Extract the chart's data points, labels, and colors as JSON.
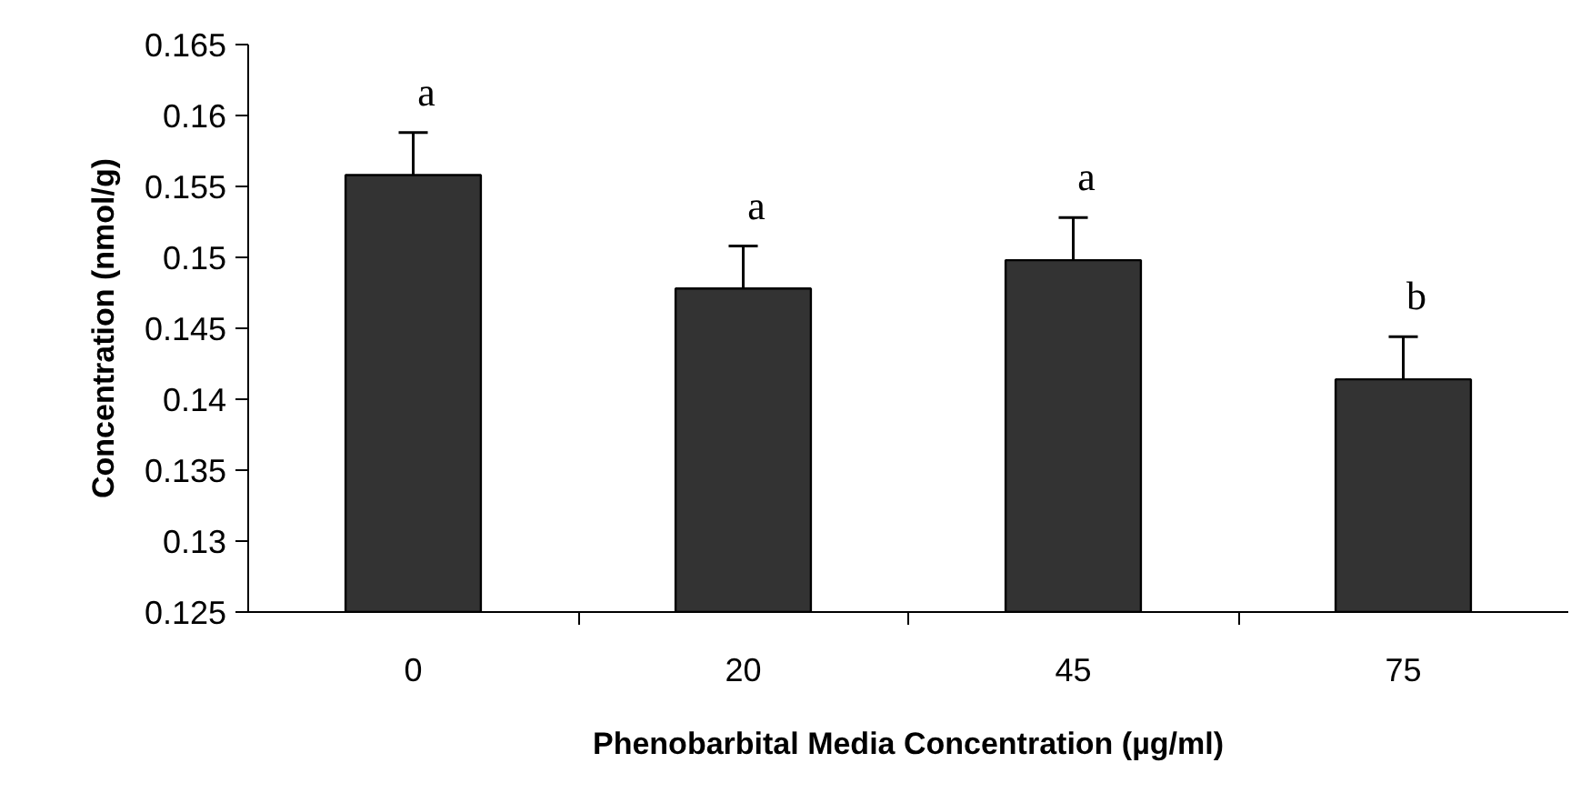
{
  "chart_data": {
    "type": "bar",
    "xlabel": "Phenobarbital Media Concentration (µg/ml)",
    "ylabel": "Concentration (nmol/g)",
    "categories": [
      "0",
      "20",
      "45",
      "75"
    ],
    "values": [
      0.1558,
      0.1478,
      0.1498,
      0.1414
    ],
    "errors": [
      0.003,
      0.003,
      0.003,
      0.003
    ],
    "color": "#333333",
    "ylim": [
      0.125,
      0.165
    ],
    "yticks": [
      0.125,
      0.13,
      0.135,
      0.14,
      0.145,
      0.15,
      0.155,
      0.16,
      0.165
    ],
    "grid": false,
    "legend": false,
    "annotations": [
      "a",
      "a",
      "a",
      "b"
    ]
  }
}
